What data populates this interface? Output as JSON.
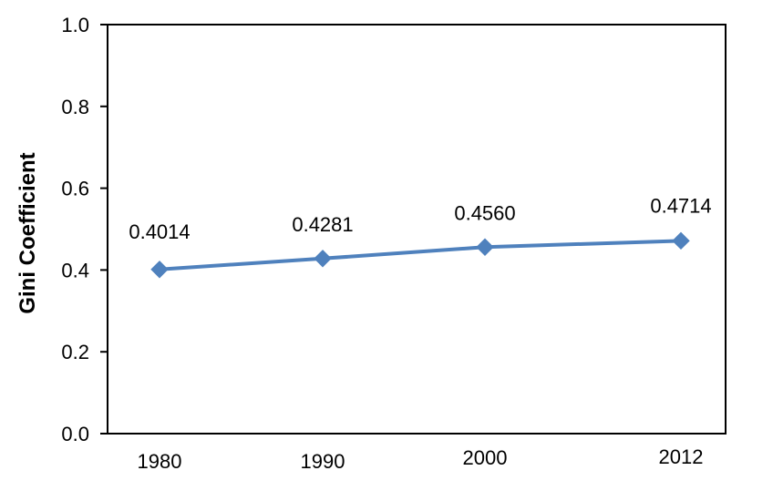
{
  "chart_data": {
    "type": "line",
    "title": "",
    "xlabel": "",
    "ylabel": "Gini Coefficient",
    "categories": [
      "1980",
      "1990",
      "2000",
      "2012"
    ],
    "series": [
      {
        "values": [
          0.4014,
          0.4281,
          0.456,
          0.4714
        ],
        "data_labels": [
          "0.4014",
          "0.4281",
          "0.4560",
          "0.4714"
        ],
        "color": "#4f81bd",
        "marker": "diamond"
      }
    ],
    "ylim": [
      0,
      1.0
    ],
    "yticks": [
      "0.0",
      "0.2",
      "0.4",
      "0.6",
      "0.8",
      "1.0"
    ],
    "grid": false,
    "legend": "none"
  }
}
